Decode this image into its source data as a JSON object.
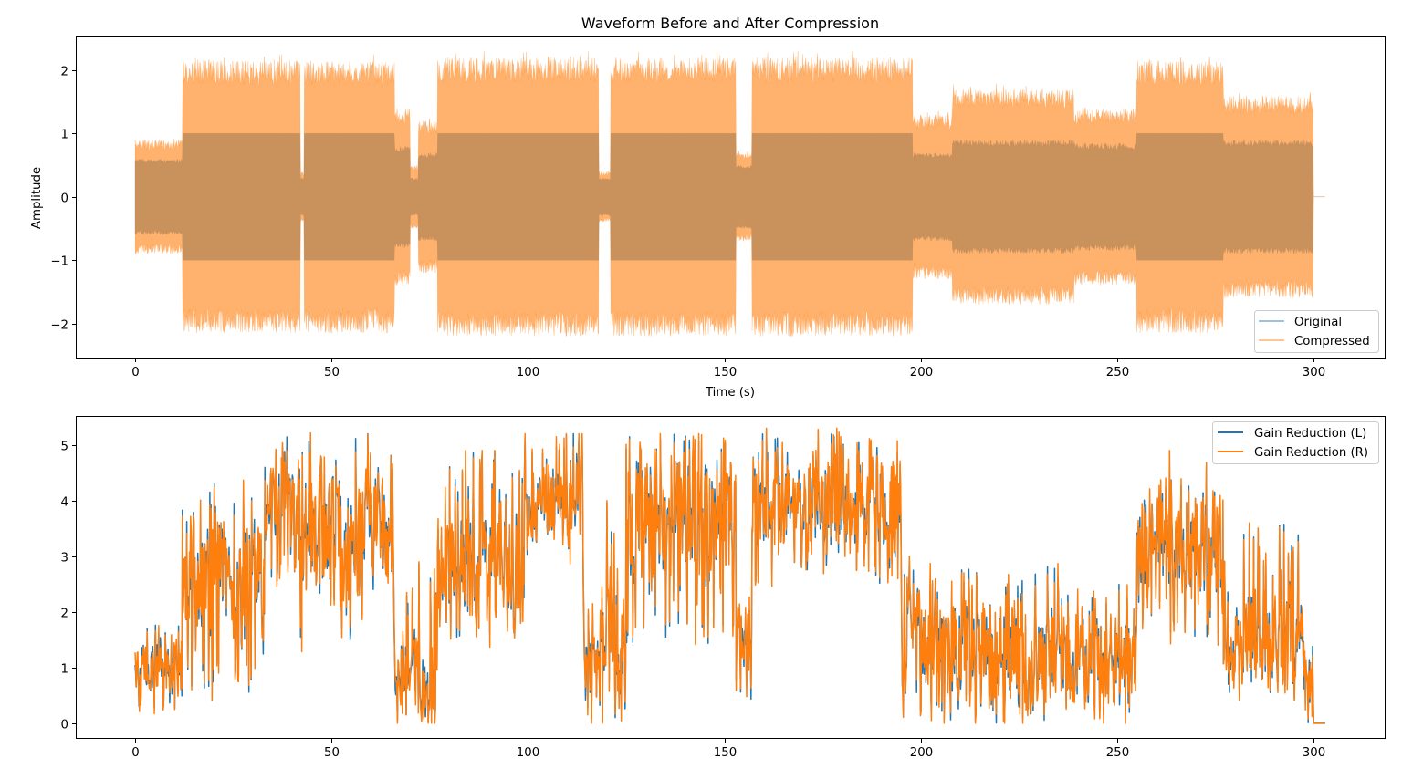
{
  "chart_data": [
    {
      "type": "area",
      "title": "Waveform Before and After Compression",
      "xlabel": "Time (s)",
      "ylabel": "Amplitude",
      "xlim": [
        -15.1,
        318.1
      ],
      "ylim": [
        -2.55,
        2.53
      ],
      "xticks": [
        0,
        50,
        100,
        150,
        200,
        250,
        300
      ],
      "xtick_labels": [
        "0",
        "50",
        "100",
        "150",
        "200",
        "250",
        "300"
      ],
      "yticks": [
        -2,
        -1,
        0,
        1,
        2
      ],
      "ytick_labels": [
        "−2",
        "−1",
        "0",
        "1",
        "2"
      ],
      "grid": false,
      "legend": "lower-right",
      "note_on_values": "waveform is drawn as its amplitude envelope per time segment (±peak)",
      "series": [
        {
          "name": "Original",
          "color": "#1f77b4",
          "alpha": 0.6
        },
        {
          "name": "Compressed",
          "color": "#ff7f0e",
          "alpha": 0.6
        }
      ],
      "segments": [
        {
          "t": [
            0,
            12
          ],
          "original": 0.6,
          "compressed": 0.9
        },
        {
          "t": [
            12,
            42
          ],
          "original": 1.0,
          "compressed": 2.15
        },
        {
          "t": [
            42,
            43
          ],
          "original": 0.3,
          "compressed": 0.4
        },
        {
          "t": [
            43,
            66
          ],
          "original": 1.0,
          "compressed": 2.15
        },
        {
          "t": [
            66,
            70
          ],
          "original": 0.8,
          "compressed": 1.4
        },
        {
          "t": [
            70,
            72
          ],
          "original": 0.3,
          "compressed": 0.5
        },
        {
          "t": [
            72,
            77
          ],
          "original": 0.7,
          "compressed": 1.2
        },
        {
          "t": [
            77,
            118
          ],
          "original": 1.0,
          "compressed": 2.2
        },
        {
          "t": [
            118,
            121
          ],
          "original": 0.3,
          "compressed": 0.4
        },
        {
          "t": [
            121,
            153
          ],
          "original": 1.0,
          "compressed": 2.2
        },
        {
          "t": [
            153,
            157
          ],
          "original": 0.5,
          "compressed": 0.7
        },
        {
          "t": [
            157,
            198
          ],
          "original": 1.0,
          "compressed": 2.2
        },
        {
          "t": [
            198,
            208
          ],
          "original": 0.7,
          "compressed": 1.3
        },
        {
          "t": [
            208,
            239
          ],
          "original": 0.9,
          "compressed": 1.7
        },
        {
          "t": [
            239,
            255
          ],
          "original": 0.85,
          "compressed": 1.4
        },
        {
          "t": [
            255,
            277
          ],
          "original": 1.0,
          "compressed": 2.15
        },
        {
          "t": [
            277,
            300
          ],
          "original": 0.9,
          "compressed": 1.6
        },
        {
          "t": [
            300,
            303
          ],
          "original": 0.0,
          "compressed": 0.0
        }
      ]
    },
    {
      "type": "line",
      "title": "",
      "xlabel": "",
      "ylabel": "",
      "xlim": [
        -15.1,
        318.1
      ],
      "ylim": [
        -0.28,
        5.52
      ],
      "xticks": [
        0,
        50,
        100,
        150,
        200,
        250,
        300
      ],
      "xtick_labels": [
        "0",
        "50",
        "100",
        "150",
        "200",
        "250",
        "300"
      ],
      "yticks": [
        0,
        1,
        2,
        3,
        4,
        5
      ],
      "ytick_labels": [
        "0",
        "1",
        "2",
        "3",
        "4",
        "5"
      ],
      "grid": false,
      "legend": "top-right",
      "series": [
        {
          "name": "Gain Reduction (L)",
          "color": "#1f77b4"
        },
        {
          "name": "Gain Reduction (R)",
          "color": "#ff7f0e"
        }
      ],
      "segments": [
        {
          "t": [
            0,
            12
          ],
          "mean": 1.0,
          "min": 0.2,
          "max": 1.8
        },
        {
          "t": [
            12,
            33
          ],
          "mean": 2.7,
          "min": 0.5,
          "max": 4.5
        },
        {
          "t": [
            33,
            42
          ],
          "mean": 4.0,
          "min": 2.5,
          "max": 5.2
        },
        {
          "t": [
            42,
            66
          ],
          "mean": 3.5,
          "min": 1.4,
          "max": 5.3
        },
        {
          "t": [
            66,
            72
          ],
          "mean": 1.0,
          "min": 0.0,
          "max": 2.5
        },
        {
          "t": [
            72,
            77
          ],
          "mean": 0.5,
          "min": 0.0,
          "max": 2.9
        },
        {
          "t": [
            77,
            99
          ],
          "mean": 2.8,
          "min": 1.5,
          "max": 4.9
        },
        {
          "t": [
            99,
            114
          ],
          "mean": 4.0,
          "min": 3.0,
          "max": 5.2
        },
        {
          "t": [
            114,
            120
          ],
          "mean": 1.5,
          "min": 0.0,
          "max": 3.0
        },
        {
          "t": [
            120,
            125
          ],
          "mean": 1.5,
          "min": 0.1,
          "max": 4.0
        },
        {
          "t": [
            125,
            153
          ],
          "mean": 3.8,
          "min": 1.4,
          "max": 5.2
        },
        {
          "t": [
            153,
            157
          ],
          "mean": 1.5,
          "min": 0.2,
          "max": 2.5
        },
        {
          "t": [
            157,
            195
          ],
          "mean": 3.9,
          "min": 2.5,
          "max": 5.3
        },
        {
          "t": [
            195,
            200
          ],
          "mean": 2.0,
          "min": 0.2,
          "max": 3.0
        },
        {
          "t": [
            200,
            240
          ],
          "mean": 1.2,
          "min": 0.0,
          "max": 2.9
        },
        {
          "t": [
            240,
            255
          ],
          "mean": 1.2,
          "min": 0.1,
          "max": 2.5
        },
        {
          "t": [
            255,
            277
          ],
          "mean": 3.2,
          "min": 1.5,
          "max": 4.9
        },
        {
          "t": [
            277,
            297
          ],
          "mean": 1.5,
          "min": 0.4,
          "max": 3.6
        },
        {
          "t": [
            297,
            300
          ],
          "mean": 0.8,
          "min": 0.0,
          "max": 2.2
        },
        {
          "t": [
            300,
            303
          ],
          "mean": 0.0,
          "min": 0.0,
          "max": 0.0
        }
      ]
    }
  ]
}
